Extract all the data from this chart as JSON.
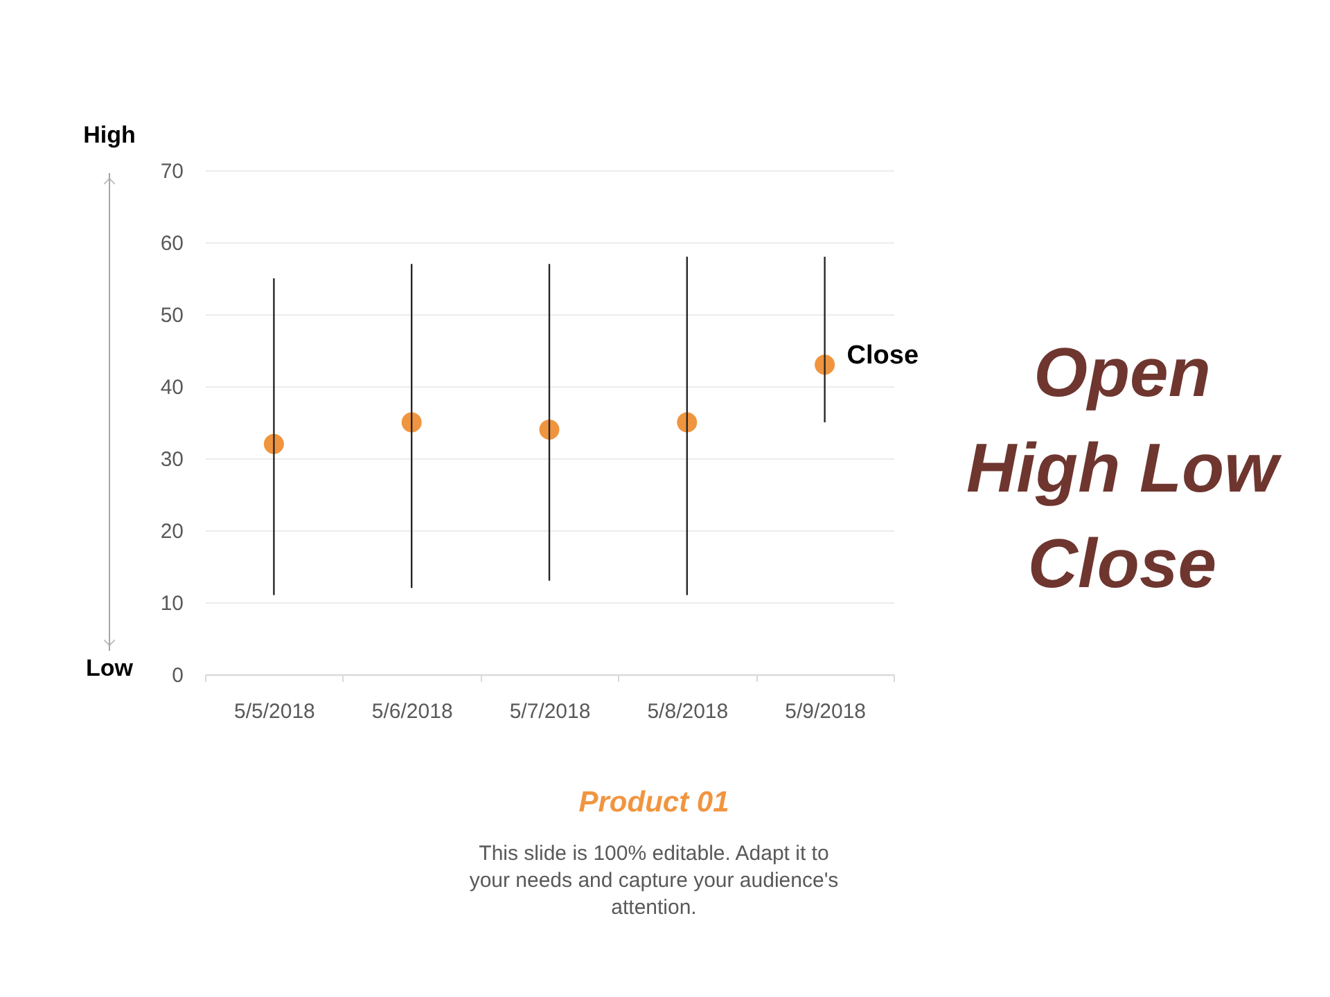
{
  "chart_data": {
    "type": "scatter",
    "title": "Open High Low Close",
    "subtitle": "Product 01",
    "categories": [
      "5/5/2018",
      "5/6/2018",
      "5/7/2018",
      "5/8/2018",
      "5/9/2018"
    ],
    "values": [
      32,
      35,
      34,
      35,
      43
    ],
    "errors": [
      [
        11,
        55
      ],
      [
        12,
        57
      ],
      [
        13,
        57
      ],
      [
        11,
        58
      ],
      [
        35,
        58
      ]
    ],
    "color": "#f0953f",
    "marker": "circle",
    "ylim": [
      0,
      70
    ],
    "yticks": [
      0,
      10,
      20,
      30,
      40,
      50,
      60,
      70
    ],
    "grid": "y",
    "annotations": [
      "High",
      "Low",
      {
        "text": "Close",
        "x": "5/9/2018",
        "y": 43
      },
      "This slide is 100% editable. Adapt it to your needs and capture your audience's attention."
    ]
  }
}
